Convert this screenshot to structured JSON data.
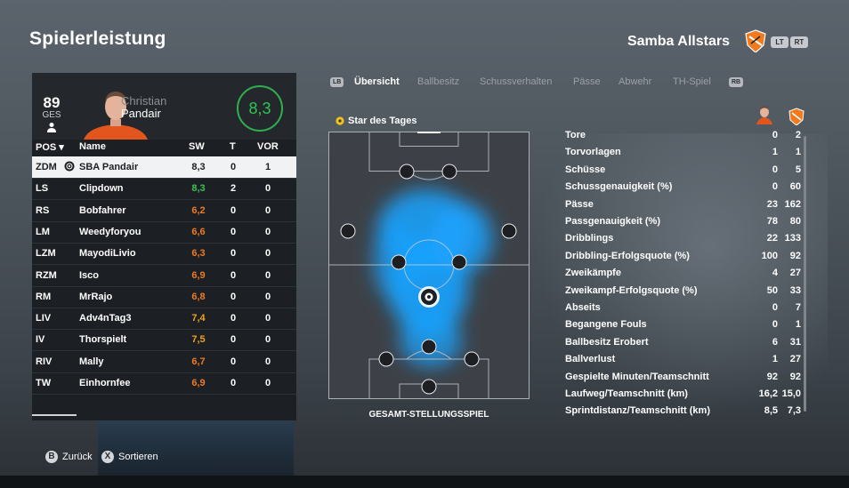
{
  "header": {
    "title": "Spielerleistung",
    "team_name": "Samba Allstars",
    "lt_label": "LT",
    "rt_label": "RT"
  },
  "player": {
    "ges_value": "89",
    "ges_label": "GES",
    "first_name": "Christian",
    "last_name": "Pandair",
    "rating": "8,3"
  },
  "table": {
    "columns": [
      "POS",
      "Name",
      "SW",
      "T",
      "VOR"
    ],
    "rows": [
      {
        "pos": "ZDM",
        "name": "SBA Pandair",
        "sw": "8,3",
        "t": "0",
        "vor": "1",
        "sw_color": "#1c2024"
      },
      {
        "pos": "LS",
        "name": "Clipdown",
        "sw": "8,3",
        "t": "2",
        "vor": "0",
        "sw_color": "#39c24f"
      },
      {
        "pos": "RS",
        "name": "Bobfahrer",
        "sw": "6,2",
        "t": "0",
        "vor": "0",
        "sw_color": "#ee7a22"
      },
      {
        "pos": "LM",
        "name": "Weedyforyou",
        "sw": "6,6",
        "t": "0",
        "vor": "0",
        "sw_color": "#ee7a22"
      },
      {
        "pos": "LZM",
        "name": "MayodiLivio",
        "sw": "6,3",
        "t": "0",
        "vor": "0",
        "sw_color": "#ee7a22"
      },
      {
        "pos": "RZM",
        "name": "Isco",
        "sw": "6,9",
        "t": "0",
        "vor": "0",
        "sw_color": "#ee7a22"
      },
      {
        "pos": "RM",
        "name": "MrRajo",
        "sw": "6,8",
        "t": "0",
        "vor": "0",
        "sw_color": "#ee7a22"
      },
      {
        "pos": "LIV",
        "name": "Adv4nTag3",
        "sw": "7,4",
        "t": "0",
        "vor": "0",
        "sw_color": "#f0a21d"
      },
      {
        "pos": "IV",
        "name": "Thorspielt",
        "sw": "7,5",
        "t": "0",
        "vor": "0",
        "sw_color": "#f0a21d"
      },
      {
        "pos": "RIV",
        "name": "Mally",
        "sw": "6,7",
        "t": "0",
        "vor": "0",
        "sw_color": "#ee7a22"
      },
      {
        "pos": "TW",
        "name": "Einhornfee",
        "sw": "6,9",
        "t": "0",
        "vor": "0",
        "sw_color": "#ee7a22"
      }
    ]
  },
  "tabs": {
    "lb": "LB",
    "rb": "RB",
    "items": [
      "Übersicht",
      "Ballbesitz",
      "Schussverhalten",
      "Pässe",
      "Abwehr",
      "TH-Spiel"
    ]
  },
  "pitch": {
    "star_label": "Star des Tages",
    "caption": "GESAMT-STELLUNGSSPIEL"
  },
  "stats": [
    {
      "label": "Tore",
      "player": "0",
      "team": "2"
    },
    {
      "label": "Torvorlagen",
      "player": "1",
      "team": "1"
    },
    {
      "label": "Schüsse",
      "player": "0",
      "team": "5"
    },
    {
      "label": "Schussgenauigkeit (%)",
      "player": "0",
      "team": "60"
    },
    {
      "label": "Pässe",
      "player": "23",
      "team": "162"
    },
    {
      "label": "Passgenauigkeit (%)",
      "player": "78",
      "team": "80"
    },
    {
      "label": "Dribblings",
      "player": "22",
      "team": "133"
    },
    {
      "label": "Dribbling-Erfolgsquote (%)",
      "player": "100",
      "team": "92"
    },
    {
      "label": "Zweikämpfe",
      "player": "4",
      "team": "27"
    },
    {
      "label": "Zweikampf-Erfolgsquote (%)",
      "player": "50",
      "team": "33"
    },
    {
      "label": "Abseits",
      "player": "0",
      "team": "7"
    },
    {
      "label": "Begangene Fouls",
      "player": "0",
      "team": "1"
    },
    {
      "label": "Ballbesitz Erobert",
      "player": "6",
      "team": "31"
    },
    {
      "label": "Ballverlust",
      "player": "1",
      "team": "27"
    },
    {
      "label": "Gespielte Minuten/Teamschnitt",
      "player": "92",
      "team": "92"
    },
    {
      "label": "Laufweg/Teamschnitt (km)",
      "player": "16,2",
      "team": "15,0"
    },
    {
      "label": "Sprintdistanz/Teamschnitt (km)",
      "player": "8,5",
      "team": "7,3"
    }
  ],
  "footer": {
    "back_key": "B",
    "back_label": "Zurück",
    "sort_key": "X",
    "sort_label": "Sortieren"
  },
  "colors": {
    "accent_green": "#2eb14d",
    "heat_blue": "#1aa3ff",
    "team_orange": "#f07a1d"
  }
}
